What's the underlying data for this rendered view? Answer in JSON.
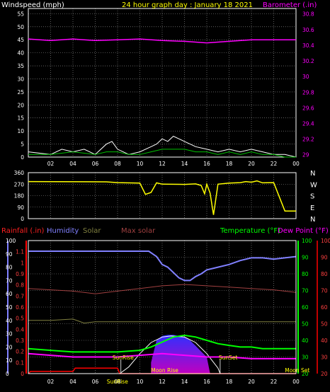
{
  "header": {
    "wind_label": "Windspeed (mph)",
    "title": "24 hour graph day : January 18 2021",
    "baro_label": "Barometer (.in)"
  },
  "colors": {
    "background": "#000000",
    "grid": "#9a9a9a",
    "frame": "#ffffff",
    "wind": "#ffffff",
    "wind_avg": "#00c000",
    "barometer": "#ff00ff",
    "direction": "#ffff00",
    "humidity": "#8080ff",
    "solar": "#808040",
    "max_solar": "#a04040",
    "temperature": "#00ff00",
    "dew_point": "#ff00ff",
    "rain": "#ff0000",
    "title": "#ffff00"
  },
  "chart_data": [
    {
      "type": "line",
      "name": "wind-barometer",
      "x_ticks": [
        "02",
        "04",
        "06",
        "08",
        "10",
        "12",
        "14",
        "16",
        "18",
        "20",
        "22",
        "00"
      ],
      "wind_axis": {
        "label": "Windspeed (mph)",
        "ticks": [
          "0",
          "5",
          "10",
          "15",
          "20",
          "25",
          "30",
          "35",
          "40",
          "45",
          "50",
          "55"
        ],
        "ylim": [
          0,
          57
        ]
      },
      "baro_axis": {
        "label": "Barometer (.in)",
        "ticks": [
          "29",
          "29.2",
          "29.4",
          "29.6",
          "29.8",
          "30",
          "30.2",
          "30.4",
          "30.6",
          "30.8"
        ],
        "ylim": [
          28.97,
          30.87
        ]
      },
      "series": [
        {
          "name": "Barometer",
          "x": [
            0,
            2,
            4,
            6,
            8,
            10,
            12,
            14,
            16,
            18,
            20,
            22,
            24
          ],
          "values": [
            30.48,
            30.46,
            30.48,
            30.46,
            30.47,
            30.48,
            30.46,
            30.45,
            30.43,
            30.45,
            30.47,
            30.47,
            30.47
          ]
        },
        {
          "x": [
            0,
            2,
            3,
            4,
            5,
            6,
            7,
            7.5,
            8,
            8.5,
            9,
            10,
            11,
            11.5,
            12,
            12.5,
            13,
            13.5,
            14,
            14.5,
            15,
            16,
            17,
            18,
            19,
            20,
            21,
            22,
            23,
            24
          ],
          "values": [
            2,
            1,
            3,
            2,
            3,
            1,
            5,
            6,
            3,
            2,
            1,
            2,
            4,
            5,
            7,
            6,
            8,
            7,
            6,
            5,
            4,
            3,
            2,
            3,
            2,
            3,
            2,
            1,
            1,
            0
          ]
        },
        {
          "x": [
            0,
            2,
            4,
            6,
            7,
            8,
            9,
            10,
            11,
            12,
            13,
            14,
            15,
            16,
            17,
            18,
            19,
            20,
            21,
            22,
            23,
            24
          ],
          "values": [
            1,
            1,
            2,
            1,
            2,
            2,
            1,
            1,
            2,
            3,
            3,
            3,
            2,
            2,
            1,
            2,
            1,
            2,
            1,
            1,
            0,
            0
          ]
        }
      ]
    },
    {
      "type": "line",
      "name": "wind-direction",
      "y_ticks": [
        "0",
        "90",
        "180",
        "270",
        "360"
      ],
      "ylim": [
        0,
        360
      ],
      "compass": [
        "N",
        "W",
        "S",
        "E",
        "N"
      ],
      "series": [
        {
          "x": [
            0,
            7,
            8,
            10,
            10.5,
            11,
            11.5,
            12,
            14,
            15,
            15.5,
            15.8,
            16,
            16.3,
            16.6,
            17,
            18,
            19,
            19.5,
            20,
            20.5,
            21,
            22,
            23,
            24
          ],
          "values": [
            290,
            288,
            282,
            278,
            190,
            205,
            280,
            270,
            268,
            272,
            260,
            195,
            270,
            200,
            30,
            270,
            278,
            282,
            290,
            285,
            295,
            280,
            282,
            60,
            60
          ]
        }
      ]
    },
    {
      "type": "line",
      "name": "weather-combo",
      "legend": [
        "Rainfall (.in)",
        "Humidity",
        "Solar",
        "Max solar",
        "Temperature (°F)",
        "Dew Point (°F)"
      ],
      "left_axis": {
        "label": "Rainfall (.in)",
        "ticks": [
          "0",
          "0.1",
          "0.2",
          "0.3",
          "0.4",
          "0.5",
          "0.6",
          "0.7",
          "0.8",
          "0.9",
          "1",
          "1.1"
        ],
        "ylim": [
          0,
          1.2
        ]
      },
      "left_axis2": {
        "ticks": [
          "0",
          "10",
          "20",
          "30",
          "40",
          "50",
          "60",
          "70",
          "80",
          "90",
          "100"
        ],
        "ylim": [
          0,
          100
        ]
      },
      "right_axis": {
        "ticks": [
          "20",
          "30",
          "40",
          "50",
          "60",
          "70",
          "80",
          "90",
          "100"
        ],
        "ylim": [
          20,
          100
        ]
      },
      "right_axis2": {
        "ticks": [
          "20",
          "30",
          "40",
          "50",
          "60",
          "70",
          "80",
          "90",
          "100"
        ],
        "ylim": [
          20,
          100
        ]
      },
      "annotations": {
        "sunrise": "SunRise",
        "sunset": "SunSet",
        "moonrise": "Moon Rise",
        "moonset": "Moon Set"
      },
      "series": [
        {
          "name": "Humidity",
          "x": [
            0,
            2,
            4,
            6,
            8,
            10,
            10.8,
            11.5,
            12,
            12.5,
            13,
            13.5,
            14,
            14.5,
            15,
            15.5,
            16,
            17,
            18,
            19,
            20,
            21,
            22,
            23,
            24
          ],
          "values": [
            92,
            92,
            92,
            92,
            92,
            92,
            92,
            88,
            82,
            80,
            76,
            72,
            70,
            70,
            73,
            75,
            78,
            80,
            82,
            85,
            87,
            87,
            86,
            87,
            88
          ]
        },
        {
          "name": "Temperature (°F)",
          "x": [
            0,
            2,
            4,
            6,
            8,
            10,
            11,
            12,
            13,
            14,
            15,
            16,
            17,
            18,
            19,
            20,
            21,
            22,
            23,
            24
          ],
          "values": [
            35,
            34,
            33,
            33,
            33,
            34,
            36,
            39,
            42,
            43,
            42,
            40,
            38,
            37,
            36,
            36,
            35,
            35,
            35,
            35
          ]
        },
        {
          "name": "Dew Point (°F)",
          "x": [
            0,
            2,
            4,
            6,
            8,
            10,
            12,
            14,
            16,
            18,
            20,
            22,
            24
          ],
          "values": [
            32,
            31,
            30,
            30,
            30,
            31,
            32,
            31,
            30,
            30,
            29,
            29,
            29
          ]
        },
        {
          "name": "Solar",
          "x": [
            0,
            2,
            4,
            5,
            6,
            7,
            8,
            10,
            12,
            14,
            16,
            18,
            20,
            22,
            24
          ],
          "values": [
            40,
            40,
            41,
            38,
            39,
            39,
            39,
            39,
            39,
            39,
            39,
            39,
            39,
            39,
            39
          ]
        },
        {
          "name": "Max solar",
          "x": [
            0,
            2,
            4,
            6,
            8,
            10,
            12,
            14,
            16,
            18,
            20,
            22,
            24
          ],
          "values": [
            64,
            63,
            62,
            60,
            62,
            64,
            66,
            67,
            66,
            65,
            64,
            63,
            61
          ]
        },
        {
          "name": "Rainfall (.in)",
          "x": [
            0,
            0.2,
            4,
            4.2,
            8,
            8.2,
            24
          ],
          "values": [
            0,
            0.02,
            0.02,
            0.05,
            0.05,
            0,
            0
          ]
        },
        {
          "name": "solar-radiation-area",
          "x": [
            11,
            11.5,
            12,
            12.5,
            13,
            13.5,
            14,
            14.5,
            15,
            15.5,
            16,
            16.3
          ],
          "values": [
            0.1,
            0.3,
            0.34,
            0.35,
            0.35,
            0.34,
            0.33,
            0.3,
            0.25,
            0.2,
            0.15,
            0
          ]
        },
        {
          "name": "solar-arc",
          "x": [
            8.2,
            9,
            10,
            11,
            12,
            12.8,
            14,
            15,
            16,
            17,
            17.2
          ],
          "values": [
            0,
            0.06,
            0.18,
            0.28,
            0.33,
            0.34,
            0.33,
            0.28,
            0.18,
            0.05,
            0
          ]
        }
      ]
    }
  ]
}
